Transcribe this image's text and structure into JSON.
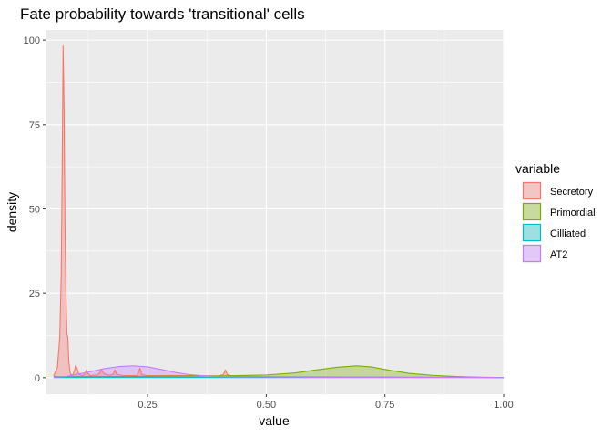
{
  "chart_data": {
    "type": "area",
    "title": "Fate probability towards 'transitional' cells",
    "xlabel": "value",
    "ylabel": "density",
    "xlim": [
      0.035,
      1.0
    ],
    "ylim": [
      -4.9,
      103
    ],
    "x_ticks": [
      0.25,
      0.5,
      0.75,
      1.0
    ],
    "x_tick_labels": [
      "0.25",
      "0.50",
      "0.75",
      "1.00"
    ],
    "y_ticks": [
      0,
      25,
      50,
      75,
      100
    ],
    "y_tick_labels": [
      "0",
      "25",
      "50",
      "75",
      "100"
    ],
    "grid": true,
    "legend": {
      "title": "variable",
      "position": "right"
    },
    "series": [
      {
        "name": "Secretory",
        "color": "#F8766D",
        "fill": "#F8766D",
        "x": [
          0.052,
          0.06,
          0.065,
          0.068,
          0.07,
          0.072,
          0.074,
          0.076,
          0.078,
          0.08,
          0.082,
          0.084,
          0.086,
          0.088,
          0.092,
          0.096,
          0.098,
          0.101,
          0.104,
          0.108,
          0.113,
          0.118,
          0.121,
          0.124,
          0.129,
          0.134,
          0.144,
          0.15,
          0.153,
          0.158,
          0.17,
          0.178,
          0.181,
          0.185,
          0.2,
          0.228,
          0.234,
          0.238,
          0.25,
          0.3,
          0.35,
          0.4,
          0.41,
          0.414,
          0.418,
          0.43,
          0.5,
          0.7,
          0.9,
          1.0
        ],
        "y": [
          0.5,
          3,
          12,
          30,
          60,
          98.5,
          80,
          45,
          25,
          13,
          12,
          5,
          2,
          1,
          0.8,
          2,
          3.5,
          3,
          1.5,
          0.8,
          0.6,
          1.2,
          2.2,
          1.3,
          0.6,
          0.7,
          0.8,
          1.5,
          2.3,
          1.2,
          0.7,
          1.1,
          2.3,
          1.0,
          0.6,
          0.6,
          2.8,
          0.9,
          0.6,
          0.6,
          0.6,
          0.5,
          1.0,
          2.3,
          0.9,
          0.4,
          0.3,
          0.2,
          0.1,
          0.05
        ]
      },
      {
        "name": "Primordial",
        "color": "#7CAE00",
        "fill": "#7CAE00",
        "x": [
          0.052,
          0.1,
          0.2,
          0.3,
          0.4,
          0.5,
          0.56,
          0.6,
          0.65,
          0.69,
          0.72,
          0.76,
          0.8,
          0.85,
          0.9,
          0.95,
          1.0
        ],
        "y": [
          0.3,
          0.3,
          0.35,
          0.45,
          0.5,
          0.8,
          1.4,
          2.2,
          3.1,
          3.5,
          3.2,
          2.2,
          1.3,
          0.7,
          0.35,
          0.15,
          0.05
        ]
      },
      {
        "name": "Cilliated",
        "color": "#00BFC4",
        "fill": "#00BFC4",
        "x": [
          0.052,
          0.2,
          0.4,
          0.6,
          0.8,
          1.0
        ],
        "y": [
          0.05,
          0.05,
          0.05,
          0.05,
          0.05,
          0.05
        ]
      },
      {
        "name": "AT2",
        "color": "#C77CFF",
        "fill": "#C77CFF",
        "x": [
          0.052,
          0.08,
          0.12,
          0.16,
          0.19,
          0.22,
          0.25,
          0.28,
          0.31,
          0.34,
          0.38,
          0.42,
          0.5,
          0.6,
          0.7,
          0.8,
          0.9,
          1.0
        ],
        "y": [
          0.1,
          0.4,
          1.5,
          2.7,
          3.3,
          3.5,
          3.2,
          2.4,
          1.5,
          0.9,
          0.4,
          0.25,
          0.2,
          0.15,
          0.15,
          0.12,
          0.1,
          0.05
        ]
      }
    ]
  }
}
